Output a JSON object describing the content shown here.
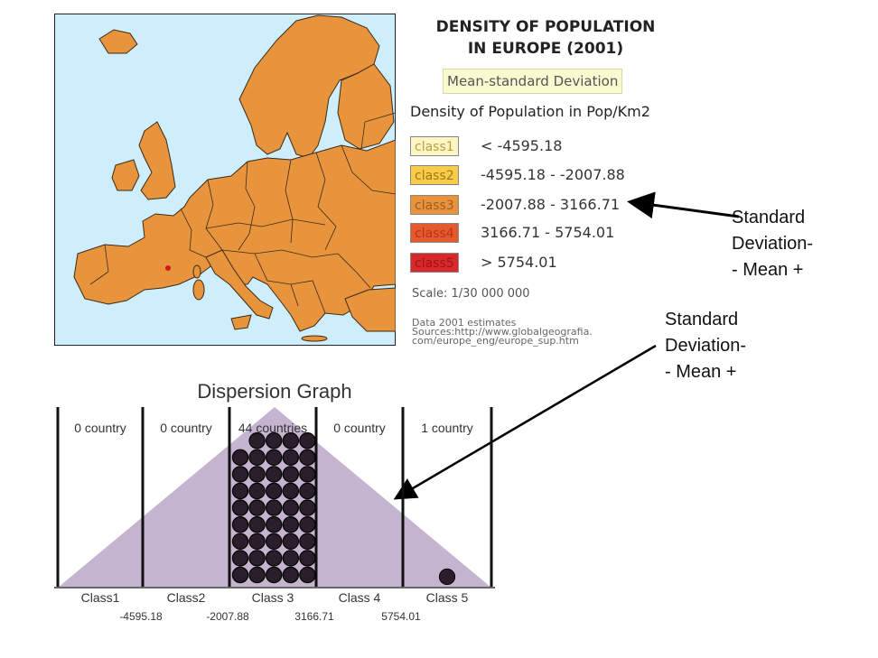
{
  "map": {
    "title_line1": "DENSITY OF POPULATION",
    "title_line2": "IN EUROPE (2001)",
    "method": "Mean-standard Deviation",
    "subtitle": "Density of Population in Pop/Km2",
    "colors": {
      "sea": "#cfeefc",
      "land": "#e8943c",
      "border": "#3a2a1a",
      "highlight": "#d01818"
    },
    "legend": [
      {
        "label": "class1",
        "range": "< -4595.18",
        "color": "#fbf6c4"
      },
      {
        "label": "class2",
        "range": "-4595.18 - -2007.88",
        "color": "#f6cc48"
      },
      {
        "label": "class3",
        "range": "-2007.88 - 3166.71",
        "color": "#e8943c"
      },
      {
        "label": "class4",
        "range": "3166.71 - 5754.01",
        "color": "#e45a2c"
      },
      {
        "label": "class5",
        "range": "> 5754.01",
        "color": "#d8282a"
      }
    ],
    "scale": "Scale: 1/30 000 000",
    "source_lines": [
      "Data 2001 estimates",
      "Sources:http://www.globalgeografia.",
      "com/europe_eng/europe_sup.htm"
    ]
  },
  "annotations": {
    "top": [
      "Standard",
      "Deviation-",
      "- Mean +"
    ],
    "right": [
      "Standard",
      "Deviation-",
      "- Mean +"
    ]
  },
  "chart_data": {
    "type": "bar",
    "title": "Dispersion Graph",
    "categories": [
      "Class1",
      "Class2",
      "Class 3",
      "Class 4",
      "Class 5"
    ],
    "values": [
      0,
      0,
      44,
      0,
      1
    ],
    "count_labels": [
      "0 country",
      "0 country",
      "44 countries",
      "0 country",
      "1 country"
    ],
    "boundaries": [
      "-4595.18",
      "-2007.88",
      "3166.71",
      "5754.01"
    ],
    "triangle_color": "#c4b4cf",
    "dot_color": "#2a1e2a"
  }
}
